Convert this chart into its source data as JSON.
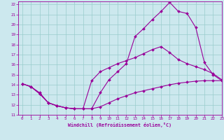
{
  "xlabel": "Windchill (Refroidissement éolien,°C)",
  "bg_color": "#cce8ee",
  "grid_color": "#99cccc",
  "line_color": "#990099",
  "xlim": [
    -0.5,
    23
  ],
  "ylim": [
    11,
    22.3
  ],
  "xticks": [
    0,
    1,
    2,
    3,
    4,
    5,
    6,
    7,
    8,
    9,
    10,
    11,
    12,
    13,
    14,
    15,
    16,
    17,
    18,
    19,
    20,
    21,
    22,
    23
  ],
  "yticks": [
    11,
    12,
    13,
    14,
    15,
    16,
    17,
    18,
    19,
    20,
    21,
    22
  ],
  "line1_x": [
    0,
    1,
    2,
    3,
    4,
    5,
    6,
    7,
    8,
    9,
    10,
    11,
    12,
    13,
    14,
    15,
    16,
    17,
    18,
    19,
    20,
    21,
    22,
    23
  ],
  "line1_y": [
    14.1,
    13.8,
    13.2,
    12.2,
    11.9,
    11.7,
    11.6,
    11.6,
    11.6,
    13.2,
    14.5,
    15.3,
    16.1,
    18.8,
    19.6,
    20.5,
    21.3,
    22.2,
    21.3,
    21.1,
    19.7,
    16.2,
    15.0,
    14.4
  ],
  "line2_x": [
    0,
    1,
    2,
    3,
    4,
    5,
    6,
    7,
    8,
    9,
    10,
    11,
    12,
    13,
    14,
    15,
    16,
    17,
    18,
    19,
    20,
    21,
    22,
    23
  ],
  "line2_y": [
    14.1,
    13.8,
    13.1,
    12.2,
    11.9,
    11.7,
    11.6,
    11.6,
    14.4,
    15.3,
    15.7,
    16.1,
    16.4,
    16.7,
    17.1,
    17.5,
    17.8,
    17.2,
    16.5,
    16.1,
    15.8,
    15.5,
    15.1,
    14.5
  ],
  "line3_x": [
    0,
    1,
    2,
    3,
    4,
    5,
    6,
    7,
    8,
    9,
    10,
    11,
    12,
    13,
    14,
    15,
    16,
    17,
    18,
    19,
    20,
    21,
    22,
    23
  ],
  "line3_y": [
    14.1,
    13.8,
    13.1,
    12.2,
    11.9,
    11.7,
    11.6,
    11.6,
    11.6,
    11.8,
    12.2,
    12.6,
    12.9,
    13.2,
    13.4,
    13.6,
    13.8,
    14.0,
    14.15,
    14.25,
    14.35,
    14.4,
    14.4,
    14.4
  ]
}
